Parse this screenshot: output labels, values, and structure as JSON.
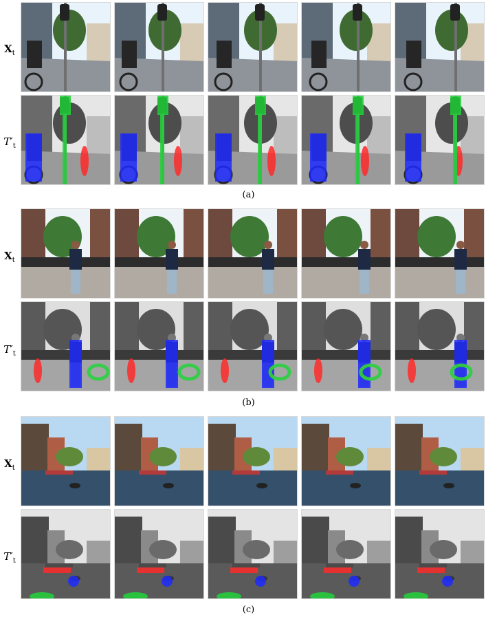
{
  "figure": {
    "row_labels": {
      "input": {
        "main": "X",
        "sub": "t"
      },
      "output": {
        "main": "T",
        "prime": "′",
        "sub": "t"
      }
    },
    "panels": [
      {
        "caption": "(a)",
        "scene": "street",
        "overlay_colors": [
          "#1f2bff",
          "#ff2a2a",
          "#22d33a"
        ]
      },
      {
        "caption": "(b)",
        "scene": "pedestrian-street",
        "overlay_colors": [
          "#1f2bff",
          "#ff2a2a",
          "#22d33a"
        ]
      },
      {
        "caption": "(c)",
        "scene": "canal",
        "overlay_colors": [
          "#1f2bff",
          "#ff2a2a",
          "#22d33a"
        ]
      }
    ],
    "frames_per_row": 5
  }
}
